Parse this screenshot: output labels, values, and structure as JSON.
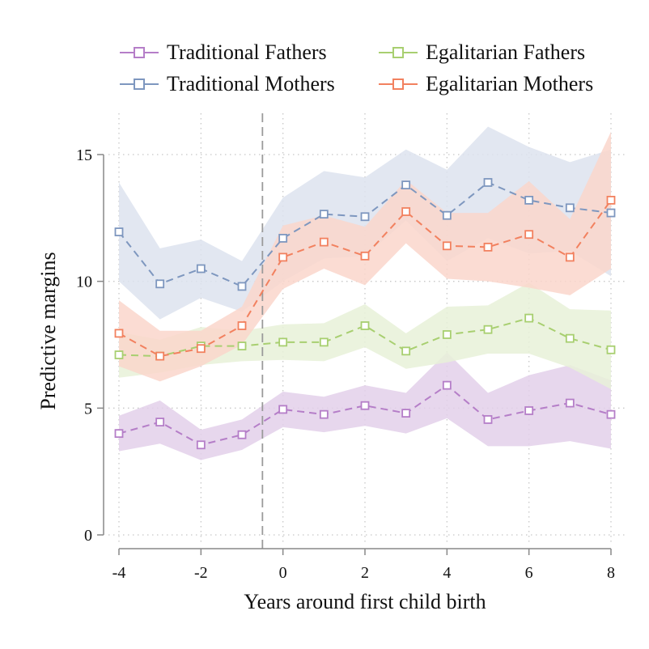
{
  "chart_data": {
    "type": "line",
    "xlabel": "Years around first child birth",
    "ylabel": "Predictive margins",
    "xlim": [
      -4,
      8
    ],
    "ylim": [
      0,
      15
    ],
    "xticks": [
      -4,
      -2,
      0,
      2,
      4,
      6,
      8
    ],
    "yticks": [
      0,
      5,
      10,
      15
    ],
    "vline": -0.5,
    "grid": true,
    "legend_position": "top",
    "x": [
      -4,
      -3,
      -2,
      -1,
      0,
      1,
      2,
      3,
      4,
      5,
      6,
      7,
      8
    ],
    "series": [
      {
        "name": "Traditional Fathers",
        "color": "#b57ec8",
        "band": "#e3d0ea",
        "values": [
          4.0,
          4.45,
          3.55,
          3.95,
          4.95,
          4.75,
          5.1,
          4.8,
          5.9,
          4.55,
          4.9,
          5.2,
          4.75
        ],
        "lower": [
          3.3,
          3.6,
          2.95,
          3.35,
          4.25,
          4.05,
          4.3,
          4.0,
          4.6,
          3.5,
          3.5,
          3.7,
          3.4
        ],
        "upper": [
          4.7,
          5.3,
          4.15,
          4.55,
          5.65,
          5.45,
          5.9,
          5.6,
          7.2,
          5.6,
          6.3,
          6.7,
          6.1
        ]
      },
      {
        "name": "Traditional Mothers",
        "color": "#7e97bf",
        "band": "#dde3ee",
        "values": [
          11.95,
          9.9,
          10.5,
          9.8,
          11.7,
          12.65,
          12.55,
          13.8,
          12.6,
          13.9,
          13.2,
          12.9,
          12.7
        ],
        "lower": [
          10.0,
          8.5,
          9.35,
          8.8,
          10.0,
          10.9,
          11.0,
          12.4,
          10.8,
          11.7,
          11.1,
          11.2,
          10.2
        ],
        "upper": [
          13.9,
          11.3,
          11.65,
          10.8,
          13.3,
          14.35,
          14.1,
          15.2,
          14.4,
          16.1,
          15.3,
          14.7,
          15.2
        ]
      },
      {
        "name": "Egalitarian Fathers",
        "color": "#a8cf70",
        "band": "#e7f1d8",
        "values": [
          7.1,
          7.05,
          7.45,
          7.45,
          7.6,
          7.6,
          8.25,
          7.25,
          7.9,
          8.1,
          8.55,
          7.75,
          7.3
        ],
        "lower": [
          6.2,
          6.4,
          6.7,
          6.85,
          6.9,
          6.85,
          7.4,
          6.55,
          6.8,
          7.15,
          7.15,
          6.6,
          5.75
        ],
        "upper": [
          8.0,
          7.7,
          8.2,
          8.05,
          8.3,
          8.35,
          9.1,
          7.95,
          9.0,
          9.05,
          9.95,
          8.9,
          8.85
        ]
      },
      {
        "name": "Egalitarian Mothers",
        "color": "#f2815f",
        "band": "#fad6cb",
        "values": [
          7.95,
          7.05,
          7.35,
          8.25,
          10.95,
          11.55,
          11.0,
          12.75,
          11.4,
          11.35,
          11.85,
          10.95,
          13.2
        ],
        "lower": [
          6.65,
          6.05,
          6.65,
          7.5,
          9.7,
          10.5,
          9.85,
          11.5,
          10.1,
          10.0,
          9.75,
          9.45,
          10.5
        ],
        "upper": [
          9.25,
          8.05,
          8.05,
          9.0,
          12.2,
          12.6,
          12.15,
          14.0,
          12.7,
          12.7,
          13.95,
          12.45,
          15.9
        ]
      }
    ]
  }
}
